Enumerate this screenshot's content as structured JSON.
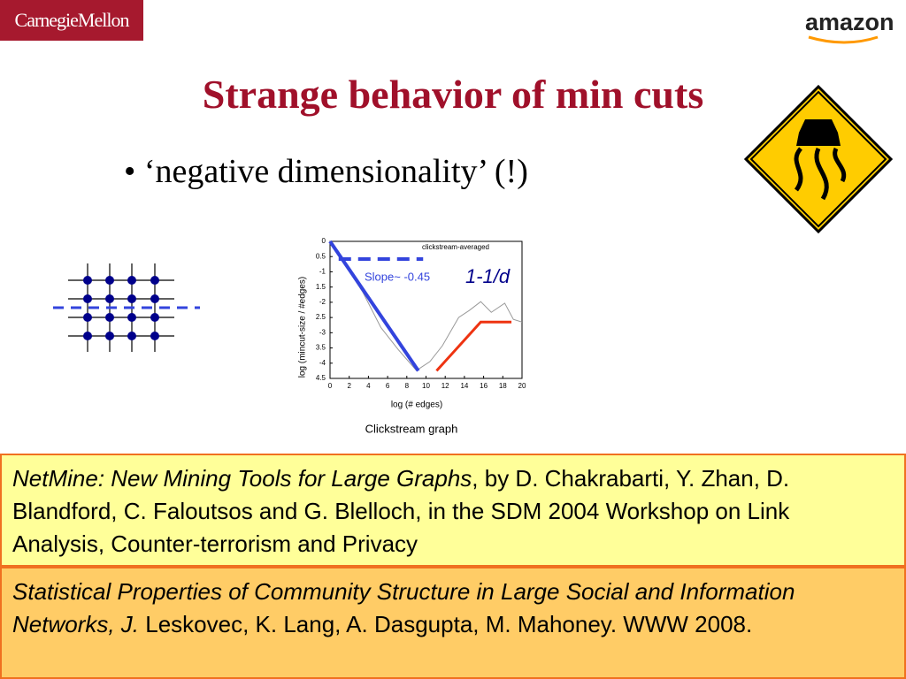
{
  "logos": {
    "left": "CarnegieMellon",
    "right": "amazon"
  },
  "title": "Strange behavior of min cuts",
  "bullets": [
    "‘negative dimensionality’ (!)"
  ],
  "chart_data": {
    "type": "line",
    "xlabel": "log (# edges)",
    "ylabel": "log (mincut-size / #edges)",
    "caption": "Clickstream graph",
    "annotations": [
      "Slope~ -0.45",
      "1-1/d"
    ],
    "xlim": [
      0,
      20
    ],
    "xticks": [
      0,
      2,
      4,
      6,
      8,
      10,
      12,
      14,
      16,
      18,
      20
    ],
    "ylim": [
      -4.5,
      0
    ],
    "yticks": [
      0,
      {
        "value": -0.5,
        "label": "0.5"
      },
      -1,
      {
        "value": -1.5,
        "label": "1.5"
      },
      -2,
      {
        "value": -2.5,
        "label": "2.5"
      },
      -3,
      {
        "value": -3.5,
        "label": "3.5"
      },
      -4,
      {
        "value": -4.5,
        "label": "4.5"
      }
    ],
    "series": [
      {
        "name": "clickstream-averaged",
        "color": "#999999",
        "width": 1,
        "x": [
          0,
          1.6,
          3.4,
          5.3,
          7.1,
          9,
          10.4,
          11.7,
          13.4,
          14.5,
          15.7,
          16.8,
          18.2,
          19.1,
          20
        ],
        "values": [
          0,
          -0.78,
          -1.66,
          -2.83,
          -3.55,
          -4.24,
          -3.95,
          -3.43,
          -2.5,
          -2.27,
          -1.98,
          -2.33,
          -2.03,
          -2.56,
          -2.65
        ]
      },
      {
        "color": "#3344dd",
        "width": 4,
        "x": [
          0,
          9.2
        ],
        "values": [
          0,
          -4.25
        ]
      },
      {
        "color": "#3344dd",
        "width": 4,
        "dash": true,
        "x": [
          0.9,
          9.7
        ],
        "values": [
          -0.58,
          -0.58
        ]
      },
      {
        "color": "#ee3311",
        "width": 3,
        "x": [
          11.1,
          15.7,
          18.9
        ],
        "values": [
          -4.25,
          -2.65,
          -2.65
        ]
      }
    ]
  },
  "references": [
    [
      {
        "text": "NetMine: New Mining Tools for Large Graphs",
        "italic": true
      },
      {
        "text": ", by D. Chakrabarti, Y. Zhan, D. Blandford, C. Faloutsos and G. Blelloch, in the SDM 2004 Workshop on Link Analysis, Counter-terrorism and Privacy",
        "italic": false
      }
    ],
    [
      {
        "text": "Statistical Properties of Community Structure in Large Social and Information Networks, J.",
        "italic": true
      },
      {
        "text": " Leskovec, K. Lang, A. Dasgupta, M. Mahoney. WWW 2008.",
        "italic": false
      }
    ]
  ]
}
